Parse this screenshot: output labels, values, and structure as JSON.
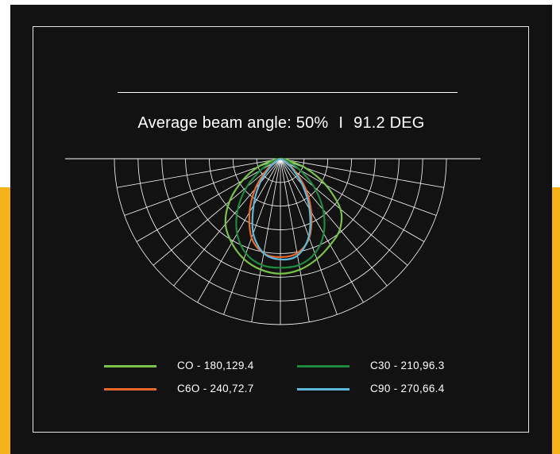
{
  "header": {
    "title_label": "Average beam angle: 50%",
    "title_separator": "I",
    "title_value": "91.2 DEG"
  },
  "colors": {
    "accent": "#F5B21B",
    "panel_background": "#121212",
    "grid": "#ffffff"
  },
  "chart_data": {
    "type": "polar",
    "angle_unit": "deg",
    "angle_range": [
      -90,
      90
    ],
    "grid_angle_step_deg": 10,
    "rings": 7,
    "r_max": 7,
    "series": [
      {
        "name": "CO - 180,129.4",
        "color": "#79C24B",
        "angles": [
          -80,
          -70,
          -60,
          -50,
          -40,
          -30,
          -20,
          -10,
          0,
          10,
          20,
          30,
          40,
          50,
          60,
          70,
          80
        ],
        "r": [
          0.25,
          1.0,
          1.85,
          2.8,
          3.6,
          4.1,
          4.5,
          4.75,
          4.85,
          4.75,
          4.5,
          4.2,
          3.9,
          3.3,
          2.2,
          1.1,
          0.25
        ]
      },
      {
        "name": "C30 - 210,96.3",
        "color": "#1F8A3E",
        "angles": [
          -70,
          -60,
          -50,
          -40,
          -30,
          -20,
          -10,
          0,
          10,
          20,
          30,
          40,
          50,
          60,
          70
        ],
        "r": [
          0.35,
          0.95,
          1.85,
          2.8,
          3.65,
          4.25,
          4.55,
          4.6,
          4.55,
          4.25,
          3.65,
          2.8,
          1.85,
          0.95,
          0.35
        ]
      },
      {
        "name": "C6O - 240,72.7",
        "color": "#E9692A",
        "angles": [
          -60,
          -50,
          -40,
          -30,
          -20,
          -10,
          0,
          10,
          20,
          30,
          40,
          50,
          60
        ],
        "r": [
          0.3,
          0.8,
          1.65,
          2.6,
          3.55,
          4.05,
          4.15,
          4.05,
          3.55,
          2.6,
          1.65,
          0.8,
          0.3
        ]
      },
      {
        "name": "C90 - 270,66.4",
        "color": "#5DB8DC",
        "angles": [
          -60,
          -50,
          -40,
          -30,
          -20,
          -10,
          0,
          10,
          20,
          30,
          40,
          50,
          60
        ],
        "r": [
          0.2,
          0.6,
          1.35,
          2.25,
          3.35,
          4.05,
          4.25,
          4.15,
          3.5,
          2.45,
          1.45,
          0.65,
          0.2
        ]
      }
    ]
  }
}
